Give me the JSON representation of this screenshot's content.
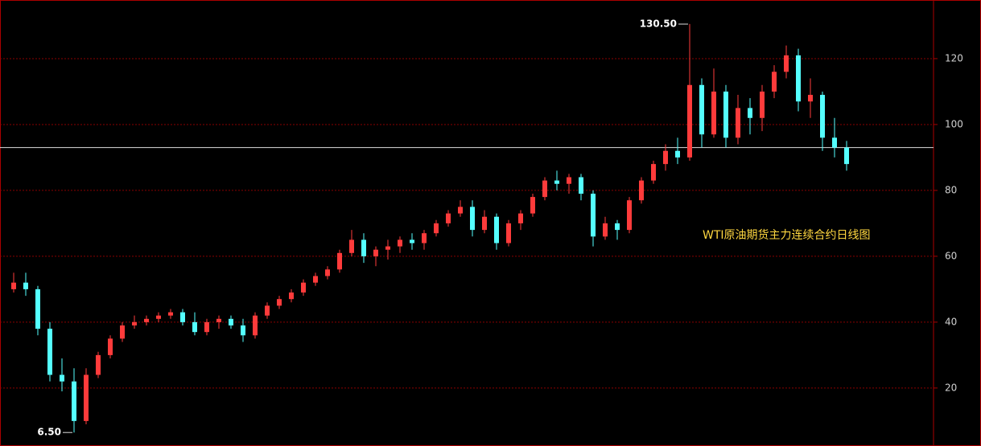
{
  "chart_data": {
    "type": "candlestick",
    "title": "WTI原油期货主力连续合约日线图",
    "ylim": [
      2.4,
      137.8
    ],
    "yticks": [
      20,
      40,
      60,
      80,
      100,
      120
    ],
    "grid": true,
    "up_color": "#ff3b3b",
    "down_color": "#54ffff",
    "hline": 93,
    "annotations": [
      {
        "value": 130.5,
        "label": "130.50"
      },
      {
        "value": 6.5,
        "label": "6.50"
      }
    ],
    "candles": [
      [
        50,
        55,
        49,
        52
      ],
      [
        52,
        55,
        48,
        50
      ],
      [
        50,
        51,
        36,
        38
      ],
      [
        38,
        40,
        22,
        24
      ],
      [
        24,
        29,
        19,
        22
      ],
      [
        22,
        26,
        6.5,
        10
      ],
      [
        10,
        26,
        9,
        24
      ],
      [
        24,
        31,
        23,
        30
      ],
      [
        30,
        36,
        29,
        35
      ],
      [
        35,
        40,
        34,
        39
      ],
      [
        39,
        42,
        38,
        40
      ],
      [
        40,
        42,
        39,
        41
      ],
      [
        41,
        43,
        40,
        42
      ],
      [
        42,
        44,
        41,
        43
      ],
      [
        43,
        44,
        39,
        40
      ],
      [
        40,
        43,
        36,
        37
      ],
      [
        37,
        41,
        36,
        40
      ],
      [
        40,
        42,
        38,
        41
      ],
      [
        41,
        42,
        38,
        39
      ],
      [
        39,
        41,
        34,
        36
      ],
      [
        36,
        43,
        35,
        42
      ],
      [
        42,
        46,
        41,
        45
      ],
      [
        45,
        48,
        44,
        47
      ],
      [
        47,
        50,
        46,
        49
      ],
      [
        49,
        53,
        48,
        52
      ],
      [
        52,
        55,
        51,
        54
      ],
      [
        54,
        57,
        53,
        56
      ],
      [
        56,
        62,
        55,
        61
      ],
      [
        61,
        68,
        60,
        65
      ],
      [
        65,
        67,
        58,
        60
      ],
      [
        60,
        63,
        57,
        62
      ],
      [
        62,
        65,
        59,
        63
      ],
      [
        63,
        66,
        61,
        65
      ],
      [
        65,
        67,
        62,
        64
      ],
      [
        64,
        68,
        62,
        67
      ],
      [
        67,
        71,
        66,
        70
      ],
      [
        70,
        74,
        69,
        73
      ],
      [
        73,
        77,
        72,
        75
      ],
      [
        75,
        77,
        66,
        68
      ],
      [
        68,
        74,
        67,
        72
      ],
      [
        72,
        73,
        62,
        64
      ],
      [
        64,
        71,
        63,
        70
      ],
      [
        70,
        74,
        68,
        73
      ],
      [
        73,
        79,
        72,
        78
      ],
      [
        78,
        84,
        77,
        83
      ],
      [
        83,
        86,
        80,
        82
      ],
      [
        82,
        85,
        79,
        84
      ],
      [
        84,
        85,
        77,
        79
      ],
      [
        79,
        80,
        63,
        66
      ],
      [
        66,
        72,
        65,
        70
      ],
      [
        70,
        71,
        65,
        68
      ],
      [
        68,
        78,
        67,
        77
      ],
      [
        77,
        84,
        76,
        83
      ],
      [
        83,
        89,
        82,
        88
      ],
      [
        88,
        94,
        86,
        92
      ],
      [
        92,
        96,
        88,
        90
      ],
      [
        90,
        130.5,
        89,
        112
      ],
      [
        112,
        114,
        93,
        97
      ],
      [
        97,
        117,
        96,
        110
      ],
      [
        110,
        112,
        93,
        96
      ],
      [
        96,
        109,
        94,
        105
      ],
      [
        105,
        108,
        97,
        102
      ],
      [
        102,
        112,
        98,
        110
      ],
      [
        110,
        118,
        108,
        116
      ],
      [
        116,
        124,
        114,
        121
      ],
      [
        121,
        123,
        104,
        107
      ],
      [
        107,
        114,
        102,
        109
      ],
      [
        109,
        110,
        92,
        96
      ],
      [
        96,
        102,
        90,
        93
      ],
      [
        93,
        95,
        86,
        88
      ]
    ]
  }
}
